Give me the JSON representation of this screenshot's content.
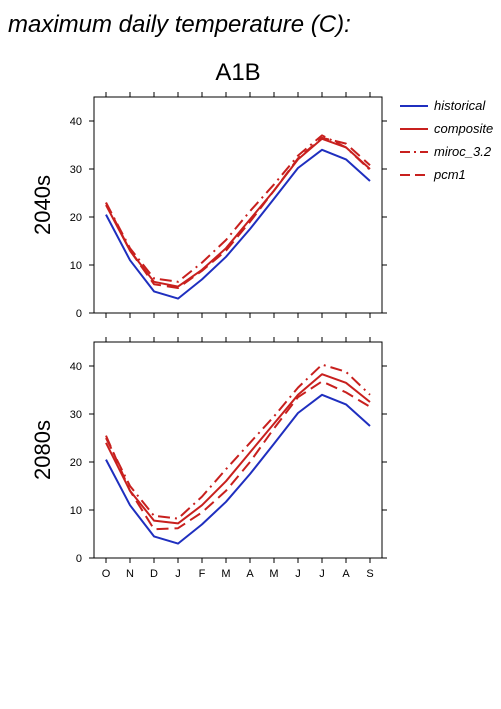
{
  "page": {
    "title": "maximum daily temperature (C):",
    "scenario": "A1B"
  },
  "legend": {
    "items": [
      {
        "label": "historical",
        "color": "#1f2fbf",
        "dash": "solid"
      },
      {
        "label": "composite",
        "color": "#c8201e",
        "dash": "solid"
      },
      {
        "label": "miroc_3.2",
        "color": "#c8201e",
        "dash": "dashdot"
      },
      {
        "label": "pcm1",
        "color": "#c8201e",
        "dash": "dashed"
      }
    ]
  },
  "chart_data": [
    {
      "type": "line",
      "ylabel": "2040s",
      "categories": [
        "O",
        "N",
        "D",
        "J",
        "F",
        "M",
        "A",
        "M",
        "J",
        "J",
        "A",
        "S"
      ],
      "ylim": [
        0,
        45
      ],
      "yticks": [
        0,
        10,
        20,
        30,
        40
      ],
      "series": [
        {
          "name": "historical",
          "color": "#1f2fbf",
          "dash": "solid",
          "values": [
            20.5,
            11.0,
            4.5,
            3.0,
            7.0,
            11.7,
            17.5,
            23.8,
            30.2,
            34.0,
            32.0,
            27.5
          ]
        },
        {
          "name": "composite",
          "color": "#c8201e",
          "dash": "solid",
          "values": [
            22.5,
            13.0,
            6.5,
            5.5,
            9.0,
            13.5,
            19.5,
            25.5,
            32.0,
            36.3,
            34.5,
            30.0
          ]
        },
        {
          "name": "miroc_3.2",
          "color": "#c8201e",
          "dash": "dashdot",
          "values": [
            23.0,
            13.5,
            7.2,
            6.5,
            10.5,
            15.2,
            21.2,
            26.8,
            32.8,
            37.0,
            34.5,
            29.8
          ]
        },
        {
          "name": "pcm1",
          "color": "#c8201e",
          "dash": "dashed",
          "values": [
            23.0,
            13.0,
            6.0,
            5.2,
            8.8,
            13.0,
            19.0,
            25.5,
            32.2,
            36.5,
            35.3,
            30.8
          ]
        }
      ]
    },
    {
      "type": "line",
      "ylabel": "2080s",
      "categories": [
        "O",
        "N",
        "D",
        "J",
        "F",
        "M",
        "A",
        "M",
        "J",
        "J",
        "A",
        "S"
      ],
      "ylim": [
        0,
        45
      ],
      "yticks": [
        0,
        10,
        20,
        30,
        40
      ],
      "series": [
        {
          "name": "historical",
          "color": "#1f2fbf",
          "dash": "solid",
          "values": [
            20.5,
            11.0,
            4.5,
            3.0,
            7.0,
            11.7,
            17.5,
            23.8,
            30.2,
            34.0,
            32.0,
            27.5
          ]
        },
        {
          "name": "composite",
          "color": "#c8201e",
          "dash": "solid",
          "values": [
            24.0,
            14.0,
            7.8,
            7.2,
            11.0,
            16.0,
            22.0,
            28.0,
            34.0,
            38.3,
            36.5,
            32.5
          ]
        },
        {
          "name": "miroc_3.2",
          "color": "#c8201e",
          "dash": "dashdot",
          "values": [
            25.0,
            15.0,
            8.8,
            8.2,
            12.8,
            18.5,
            24.0,
            29.5,
            35.5,
            40.3,
            38.8,
            34.0
          ]
        },
        {
          "name": "pcm1",
          "color": "#c8201e",
          "dash": "dashed",
          "values": [
            25.5,
            14.0,
            6.0,
            6.2,
            9.5,
            14.0,
            20.0,
            27.0,
            33.5,
            36.8,
            34.5,
            31.5
          ]
        }
      ]
    }
  ]
}
